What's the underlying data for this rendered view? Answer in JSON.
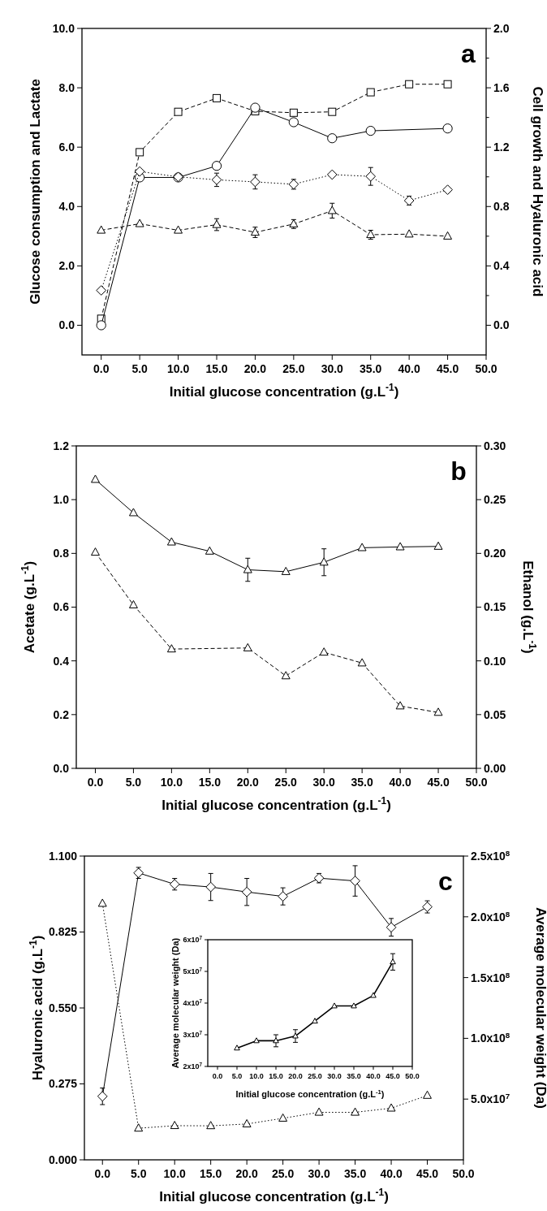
{
  "chart_data": [
    {
      "type": "line",
      "annotations": [
        "a"
      ],
      "xlabel": "Initial glucose concentration (g.L$^{-1}$)",
      "ylabel": "Glucose consumption and Lactate",
      "y2label": "Cell growth and Hyaluronic acid",
      "x": [
        0,
        5,
        10,
        15,
        20,
        25,
        30,
        35,
        40,
        45
      ],
      "xlim": [
        -2.5,
        50
      ],
      "xticks": [
        {
          "value": 0,
          "label": "0.0"
        },
        {
          "value": 5,
          "label": "5.0"
        },
        {
          "value": 10,
          "label": "10.0"
        },
        {
          "value": 15,
          "label": "15.0"
        },
        {
          "value": 20,
          "label": "20.0"
        },
        {
          "value": 25,
          "label": "25.0"
        },
        {
          "value": 30,
          "label": "30.0"
        },
        {
          "value": 35,
          "label": "35.0"
        },
        {
          "value": 40,
          "label": "40.0"
        },
        {
          "value": 45,
          "label": "45.0"
        },
        {
          "value": 50,
          "label": "50.0"
        }
      ],
      "ylim": [
        -1,
        10
      ],
      "yticks": [
        {
          "value": 0,
          "label": "0.0"
        },
        {
          "value": 2,
          "label": "2.0"
        },
        {
          "value": 4,
          "label": "4.0"
        },
        {
          "value": 6,
          "label": "6.0"
        },
        {
          "value": 8,
          "label": "8.0"
        },
        {
          "value": 10,
          "label": "10.0"
        }
      ],
      "y2lim": [
        -0.2,
        2.0
      ],
      "y2ticks": [
        {
          "value": 0,
          "label": "0.0"
        },
        {
          "value": 0.2,
          "label": null
        },
        {
          "value": 0.4,
          "label": "0.4"
        },
        {
          "value": 0.6,
          "label": null
        },
        {
          "value": 0.8,
          "label": "0.8"
        },
        {
          "value": 1.0,
          "label": null
        },
        {
          "value": 1.2,
          "label": "1.2"
        },
        {
          "value": 1.4,
          "label": null
        },
        {
          "value": 1.6,
          "label": "1.6"
        },
        {
          "value": 1.8,
          "label": null
        },
        {
          "value": 2.0,
          "label": "2.0"
        }
      ],
      "series": [
        {
          "color": "#000000",
          "marker": "square",
          "line_style": "dashed",
          "values": [
            0.22,
            5.83,
            7.19,
            7.65,
            7.21,
            7.16,
            7.19,
            7.85,
            8.12,
            8.12
          ]
        },
        {
          "color": "#000000",
          "marker": "circle",
          "line_style": "solid",
          "x": [
            0,
            5,
            10,
            15,
            20,
            25,
            30,
            35,
            45
          ],
          "values": [
            0,
            4.98,
            4.98,
            5.37,
            7.33,
            6.84,
            6.3,
            6.55,
            6.63
          ]
        },
        {
          "color": "#000000",
          "marker": "diamond",
          "line_style": "dotted",
          "axis": "y2",
          "values": [
            0.235,
            1.036,
            1.0,
            0.98,
            0.966,
            0.95,
            1.015,
            1.003,
            0.84,
            0.913
          ],
          "errors": [
            null,
            null,
            null,
            0.045,
            0.048,
            0.033,
            null,
            0.06,
            0.03,
            null
          ]
        },
        {
          "color": "#000000",
          "marker": "triangle",
          "line_style": "dashed",
          "axis": "y2",
          "values": [
            0.64,
            0.684,
            0.64,
            0.678,
            0.626,
            0.682,
            0.772,
            0.61,
            0.614,
            0.6
          ],
          "errors": [
            null,
            null,
            null,
            0.04,
            0.035,
            0.03,
            0.05,
            0.03,
            null,
            null
          ]
        }
      ]
    },
    {
      "type": "line",
      "annotations": [
        "b"
      ],
      "xlabel": "Initial glucose concentration (g.L$^{-1}$)",
      "ylabel": "Acetate (g.L$^{-1}$)",
      "y2label": "Ethanol (g.L$^{-1}$)",
      "x": [
        0,
        5,
        10,
        15,
        20,
        25,
        30,
        35,
        40,
        45
      ],
      "xlim": [
        -2.5,
        50
      ],
      "xticks": [
        {
          "value": 0,
          "label": "0.0"
        },
        {
          "value": 5,
          "label": "5.0"
        },
        {
          "value": 10,
          "label": "10.0"
        },
        {
          "value": 15,
          "label": "15.0"
        },
        {
          "value": 20,
          "label": "20.0"
        },
        {
          "value": 25,
          "label": "25.0"
        },
        {
          "value": 30,
          "label": "30.0"
        },
        {
          "value": 35,
          "label": "35.0"
        },
        {
          "value": 40,
          "label": "40.0"
        },
        {
          "value": 45,
          "label": "45.0"
        },
        {
          "value": 50,
          "label": "50.0"
        }
      ],
      "ylim": [
        0,
        1.2
      ],
      "yticks": [
        {
          "value": 0,
          "label": "0.0"
        },
        {
          "value": 0.2,
          "label": "0.2"
        },
        {
          "value": 0.4,
          "label": "0.4"
        },
        {
          "value": 0.6,
          "label": "0.6"
        },
        {
          "value": 0.8,
          "label": "0.8"
        },
        {
          "value": 1.0,
          "label": "1.0"
        },
        {
          "value": 1.2,
          "label": "1.2"
        }
      ],
      "y2lim": [
        0,
        0.3
      ],
      "y2ticks": [
        {
          "value": 0,
          "label": "0.00"
        },
        {
          "value": 0.05,
          "label": "0.05"
        },
        {
          "value": 0.1,
          "label": "0.10"
        },
        {
          "value": 0.15,
          "label": "0.15"
        },
        {
          "value": 0.2,
          "label": "0.20"
        },
        {
          "value": 0.25,
          "label": "0.25"
        },
        {
          "value": 0.3,
          "label": "0.30"
        }
      ],
      "series": [
        {
          "color": "#000000",
          "marker": "triangle",
          "line_style": "solid",
          "values": [
            1.075,
            0.951,
            0.842,
            0.808,
            0.739,
            0.732,
            0.767,
            0.821,
            0.824,
            0.826
          ],
          "errors": [
            null,
            null,
            null,
            null,
            0.043,
            null,
            0.05,
            null,
            null,
            null
          ]
        },
        {
          "color": "#000000",
          "marker": "triangle",
          "line_style": "dashed",
          "axis": "y2",
          "x": [
            0,
            5,
            10,
            20,
            25,
            30,
            35,
            40,
            45
          ],
          "values": [
            0.201,
            0.152,
            0.111,
            0.112,
            0.086,
            0.108,
            0.098,
            0.058,
            0.052
          ]
        }
      ]
    },
    {
      "type": "line",
      "annotations": [
        "c"
      ],
      "xlabel": "Initial glucose concentration (g.L$^{-1}$)",
      "ylabel": "Hyaluronic acid (g.L$^{-1}$)",
      "y2label": "Average molecular weight (Da)",
      "x": [
        0,
        5,
        10,
        15,
        20,
        25,
        30,
        35,
        40,
        45
      ],
      "xlim": [
        -2.5,
        50
      ],
      "xticks": [
        {
          "value": 0,
          "label": "0.0"
        },
        {
          "value": 5,
          "label": "5.0"
        },
        {
          "value": 10,
          "label": "10.0"
        },
        {
          "value": 15,
          "label": "15.0"
        },
        {
          "value": 20,
          "label": "20.0"
        },
        {
          "value": 25,
          "label": "25.0"
        },
        {
          "value": 30,
          "label": "30.0"
        },
        {
          "value": 35,
          "label": "35.0"
        },
        {
          "value": 40,
          "label": "40.0"
        },
        {
          "value": 45,
          "label": "45.0"
        },
        {
          "value": 50,
          "label": "50.0"
        }
      ],
      "ylim": [
        0,
        1.1
      ],
      "yticks": [
        {
          "value": 0,
          "label": "0.000"
        },
        {
          "value": 0.275,
          "label": "0.275"
        },
        {
          "value": 0.55,
          "label": "0.550"
        },
        {
          "value": 0.825,
          "label": "0.825"
        },
        {
          "value": 1.1,
          "label": "1.100"
        }
      ],
      "y2lim": [
        0,
        250000000
      ],
      "y2ticks": [
        {
          "value": 50000000,
          "label": "5.0x10$^{7}$"
        },
        {
          "value": 100000000,
          "label": "1.0x10$^{8}$"
        },
        {
          "value": 150000000,
          "label": "1.5x10$^{8}$"
        },
        {
          "value": 200000000,
          "label": "2.0x10$^{8}$"
        },
        {
          "value": 250000000,
          "label": "2.5x10$^{8}$"
        }
      ],
      "series": [
        {
          "color": "#000000",
          "marker": "diamond",
          "line_style": "solid",
          "values": [
            0.23,
            1.039,
            0.998,
            0.988,
            0.97,
            0.954,
            1.02,
            1.01,
            0.842,
            0.916
          ],
          "errors": [
            0.03,
            0.02,
            0.021,
            0.049,
            0.049,
            0.031,
            0.017,
            0.055,
            0.032,
            0.022
          ]
        },
        {
          "color": "#000000",
          "marker": "triangle",
          "line_style": "dotted",
          "axis": "y2",
          "values": [
            211000000,
            26000000,
            28100000,
            28000000,
            29500000,
            34200000,
            39100000,
            39100000,
            42500000,
            53000000
          ]
        }
      ]
    },
    {
      "type": "line",
      "xlabel": "Initial glucose concentration (g.L$^{-1}$)",
      "ylabel": "Average molecular weight (Da)",
      "x": [
        5,
        10,
        15,
        20,
        25,
        30,
        35,
        40,
        45
      ],
      "xlim": [
        -2.5,
        50
      ],
      "xticks": [
        {
          "value": 0,
          "label": "0.0"
        },
        {
          "value": 5,
          "label": "5.0"
        },
        {
          "value": 10,
          "label": "10.0"
        },
        {
          "value": 15,
          "label": "15.0"
        },
        {
          "value": 20,
          "label": "20.0"
        },
        {
          "value": 25,
          "label": "25.0"
        },
        {
          "value": 30,
          "label": "30.0"
        },
        {
          "value": 35,
          "label": "35.0"
        },
        {
          "value": 40,
          "label": "40.0"
        },
        {
          "value": 45,
          "label": "45.0"
        },
        {
          "value": 50,
          "label": "50.0"
        }
      ],
      "ylim": [
        20000000,
        60000000
      ],
      "yticks": [
        {
          "value": 20000000,
          "label": "2x10$^{7}$"
        },
        {
          "value": 30000000,
          "label": "3x10$^{7}$"
        },
        {
          "value": 40000000,
          "label": "4x10$^{7}$"
        },
        {
          "value": 50000000,
          "label": "5x10$^{7}$"
        },
        {
          "value": 60000000,
          "label": "6x10$^{7}$"
        }
      ],
      "series": [
        {
          "color": "#000000",
          "marker": "triangle",
          "line_style": "solid",
          "values": [
            25800000,
            28100000,
            28100000,
            29600000,
            34300000,
            39100000,
            39100000,
            42400000,
            53000000
          ],
          "errors": [
            null,
            null,
            1900000,
            2000000,
            null,
            null,
            null,
            null,
            2600000
          ]
        }
      ]
    }
  ]
}
